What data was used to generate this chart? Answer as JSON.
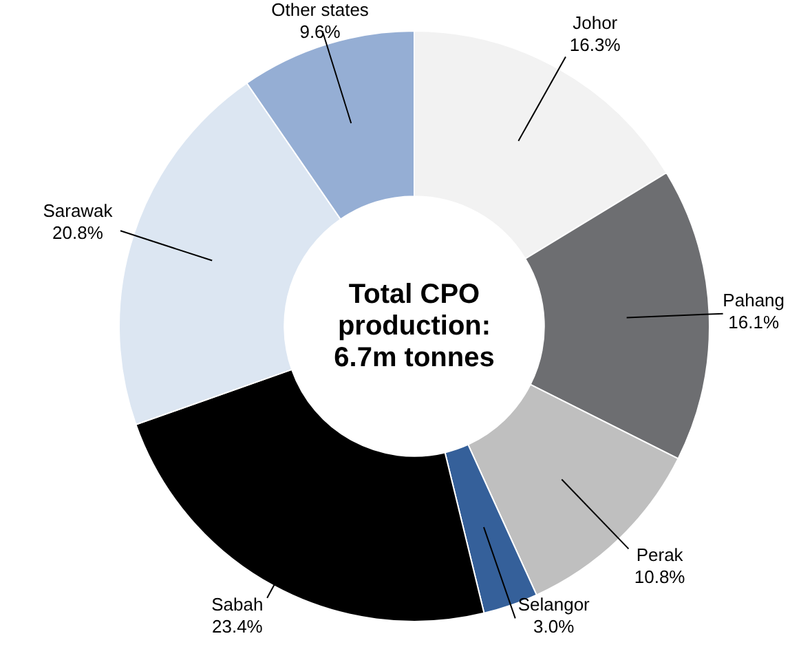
{
  "chart_data": {
    "type": "donut",
    "title": "Total CPO production: 6.7m tonnes",
    "categories": [
      "Johor",
      "Pahang",
      "Perak",
      "Selangor",
      "Sabah",
      "Sarawak",
      "Other states"
    ],
    "values": [
      16.3,
      16.1,
      10.8,
      3.0,
      23.4,
      20.8,
      9.6
    ],
    "value_labels": [
      "16.3%",
      "16.1%",
      "10.8%",
      "3.0%",
      "23.4%",
      "20.8%",
      "9.6%"
    ],
    "colors": [
      "#f2f2f2",
      "#6d6e71",
      "#bfbfbf",
      "#35609a",
      "#000000",
      "#dce6f2",
      "#95aed4"
    ],
    "legend": false
  }
}
